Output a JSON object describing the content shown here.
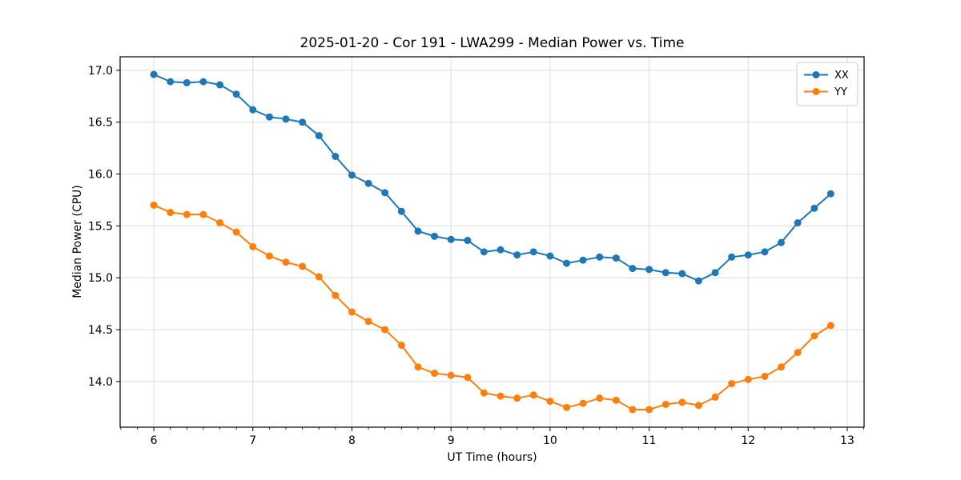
{
  "chart_data": {
    "type": "line",
    "title": "2025-01-20 - Cor 191 - LWA299 - Median Power vs. Time",
    "xlabel": "UT Time (hours)",
    "ylabel": "Median Power (CPU)",
    "xlim": [
      5.66,
      13.17
    ],
    "ylim": [
      13.56,
      17.13
    ],
    "xticks": [
      6,
      7,
      8,
      9,
      10,
      11,
      12,
      13
    ],
    "xtick_labels": [
      "6",
      "7",
      "8",
      "9",
      "10",
      "11",
      "12",
      "13"
    ],
    "yticks": [
      14.0,
      14.5,
      15.0,
      15.5,
      16.0,
      16.5,
      17.0
    ],
    "ytick_labels": [
      "14.0",
      "14.5",
      "15.0",
      "15.5",
      "16.0",
      "16.5",
      "17.0"
    ],
    "x_minor_step": 0.16667,
    "grid": true,
    "legend_position": "upper right",
    "x": [
      6.0,
      6.167,
      6.333,
      6.5,
      6.667,
      6.833,
      7.0,
      7.167,
      7.333,
      7.5,
      7.667,
      7.833,
      8.0,
      8.167,
      8.333,
      8.5,
      8.667,
      8.833,
      9.0,
      9.167,
      9.333,
      9.5,
      9.667,
      9.833,
      10.0,
      10.167,
      10.333,
      10.5,
      10.667,
      10.833,
      11.0,
      11.167,
      11.333,
      11.5,
      11.667,
      11.833,
      12.0,
      12.167,
      12.333,
      12.5,
      12.667,
      12.833
    ],
    "series": [
      {
        "name": "XX",
        "color": "#1f77b4",
        "values": [
          16.96,
          16.89,
          16.88,
          16.89,
          16.86,
          16.77,
          16.62,
          16.55,
          16.53,
          16.5,
          16.37,
          16.17,
          15.99,
          15.91,
          15.82,
          15.64,
          15.45,
          15.4,
          15.37,
          15.36,
          15.25,
          15.27,
          15.22,
          15.25,
          15.21,
          15.14,
          15.17,
          15.2,
          15.19,
          15.09,
          15.08,
          15.05,
          15.04,
          14.97,
          15.05,
          15.2,
          15.22,
          15.25,
          15.34,
          15.53,
          15.67,
          15.81
        ]
      },
      {
        "name": "YY",
        "color": "#ff7f0e",
        "values": [
          15.7,
          15.63,
          15.61,
          15.61,
          15.53,
          15.44,
          15.3,
          15.21,
          15.15,
          15.11,
          15.01,
          14.83,
          14.67,
          14.58,
          14.5,
          14.35,
          14.14,
          14.08,
          14.06,
          14.04,
          13.89,
          13.86,
          13.84,
          13.87,
          13.81,
          13.75,
          13.79,
          13.84,
          13.82,
          13.73,
          13.73,
          13.78,
          13.8,
          13.77,
          13.85,
          13.98,
          14.02,
          14.05,
          14.14,
          14.28,
          14.44,
          14.54
        ]
      }
    ],
    "colors": {
      "grid": "#dcdcdc",
      "axis": "#000000",
      "legend_border": "#cccccc",
      "background": "#ffffff"
    }
  }
}
